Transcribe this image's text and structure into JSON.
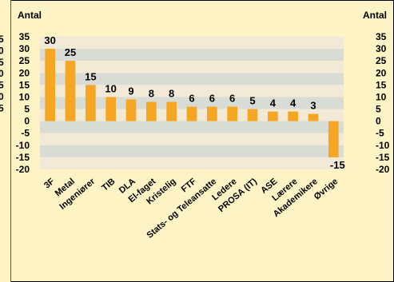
{
  "chart_data": {
    "type": "bar",
    "ylabel_left": "Antal",
    "ylabel_right": "Antal",
    "categories": [
      "3F",
      "Metal",
      "Ingeniører",
      "TIB",
      "DLA",
      "El-faget",
      "Kristelig",
      "FTF",
      "Stats- og Teleansatte",
      "Ledere",
      "PROSA (IT)",
      "ASE",
      "Lærere",
      "Akademikere",
      "Øvrige"
    ],
    "values": [
      30,
      25,
      15,
      10,
      9,
      8,
      8,
      6,
      6,
      6,
      5,
      4,
      4,
      3,
      -15
    ],
    "data_labels": [
      "30",
      "25",
      "15",
      "10",
      "9",
      "8",
      "8",
      "6",
      "6",
      "6",
      "5",
      "4",
      "4",
      "3",
      "-15"
    ],
    "ylim": [
      -20,
      35
    ],
    "yticks": [
      "35",
      "30",
      "25",
      "20",
      "15",
      "10",
      "5",
      "0",
      "-5",
      "-10",
      "-15",
      "-20"
    ],
    "left_edge_ticks": [
      "5",
      "0",
      "5",
      "0",
      "5",
      "0",
      "5"
    ],
    "bar_color": "#f5a623",
    "band_colors": [
      "#f2ead6",
      "#d9dcd4"
    ],
    "background": "#fdf3c4",
    "grid": false,
    "legend": "none"
  }
}
